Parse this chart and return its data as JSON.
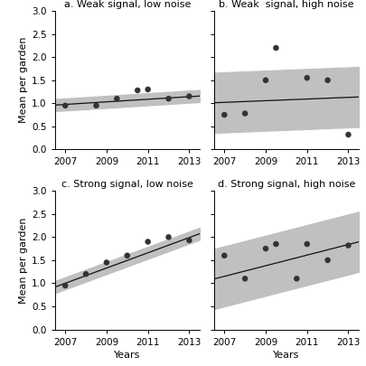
{
  "panels": [
    {
      "title": "a. Weak signal, low noise",
      "points_x": [
        2007,
        2008.5,
        2009.5,
        2010.5,
        2011,
        2012,
        2013
      ],
      "points_y": [
        0.95,
        0.95,
        1.1,
        1.28,
        1.3,
        1.1,
        1.15
      ],
      "slope": 0.028,
      "intercept_at_2007": 0.975,
      "ci_half": 0.13,
      "ylabel": "Mean per garden",
      "xlabel": ""
    },
    {
      "title": "b. Weak  signal, high noise",
      "points_x": [
        2007,
        2008,
        2009,
        2009.5,
        2011,
        2012,
        2013
      ],
      "points_y": [
        0.75,
        0.78,
        1.5,
        2.2,
        1.55,
        1.5,
        0.32
      ],
      "slope": 0.018,
      "intercept_at_2007": 1.02,
      "ci_half": 0.65,
      "ylabel": "",
      "xlabel": ""
    },
    {
      "title": "c. Strong signal, low noise",
      "points_x": [
        2007,
        2008,
        2009,
        2010,
        2011,
        2012,
        2013
      ],
      "points_y": [
        0.95,
        1.2,
        1.45,
        1.6,
        1.9,
        2.0,
        1.93
      ],
      "slope": 0.165,
      "intercept_at_2007": 1.0,
      "ci_half": 0.13,
      "ylabel": "Mean per garden",
      "xlabel": "Years"
    },
    {
      "title": "d. Strong signal, high noise",
      "points_x": [
        2007,
        2008,
        2009,
        2009.5,
        2010.5,
        2011,
        2012,
        2013
      ],
      "points_y": [
        1.6,
        1.1,
        1.75,
        1.85,
        1.1,
        1.85,
        1.5,
        1.82
      ],
      "slope": 0.115,
      "intercept_at_2007": 1.15,
      "ci_half": 0.65,
      "ylabel": "",
      "xlabel": "Years"
    }
  ],
  "ylim": [
    0.0,
    3.0
  ],
  "xlim": [
    2006.5,
    2013.5
  ],
  "xticks": [
    2007,
    2009,
    2011,
    2013
  ],
  "yticks": [
    0.0,
    0.5,
    1.0,
    1.5,
    2.0,
    2.5,
    3.0
  ],
  "ci_color": "#c0c0c0",
  "point_color": "#333333",
  "line_color": "#111111",
  "fig_bg": "#ffffff"
}
